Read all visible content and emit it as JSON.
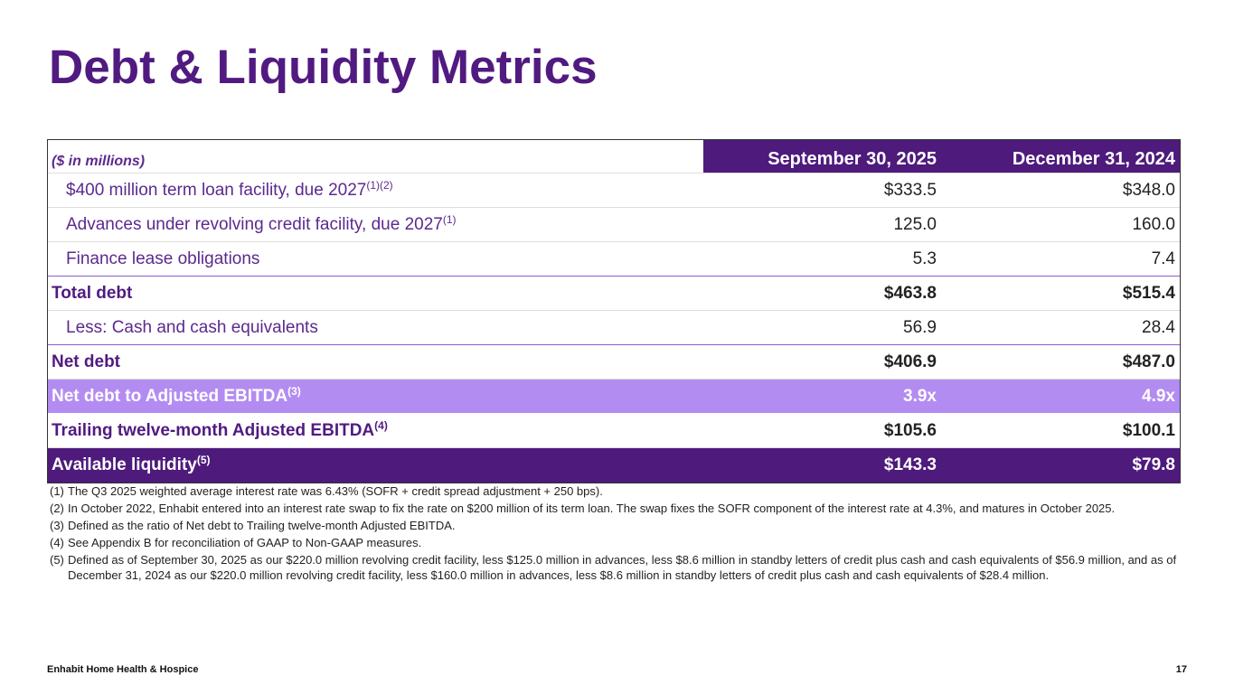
{
  "title": "Debt & Liquidity Metrics",
  "table": {
    "header": {
      "label": "($ in millions)",
      "columns": [
        "September 30, 2025",
        "December 31, 2024"
      ]
    },
    "rows": [
      {
        "label": "$400 million term loan facility, due 2027",
        "note": "(1)(2)",
        "values": [
          "$333.5",
          "$348.0"
        ]
      },
      {
        "label": "Advances under revolving credit facility, due 2027",
        "note": "(1)",
        "values": [
          "125.0",
          "160.0"
        ]
      },
      {
        "label": "Finance lease obligations",
        "values": [
          "5.3",
          "7.4"
        ]
      },
      {
        "label": "Total debt",
        "values": [
          "$463.8",
          "$515.4"
        ]
      },
      {
        "label": "Less: Cash and cash equivalents",
        "values": [
          "56.9",
          "28.4"
        ]
      },
      {
        "label": "Net debt",
        "values": [
          "$406.9",
          "$487.0"
        ]
      },
      {
        "label": "Net debt to Adjusted EBITDA",
        "note": "(3)",
        "values": [
          "3.9x",
          "4.9x"
        ]
      },
      {
        "label": "Trailing twelve-month Adjusted EBITDA",
        "note": "(4)",
        "values": [
          "$105.6",
          "$100.1"
        ]
      },
      {
        "label": "Available liquidity",
        "note": "(5)",
        "values": [
          "$143.3",
          "$79.8"
        ]
      }
    ]
  },
  "footnotes": [
    {
      "marker": "(1)",
      "text": "The Q3 2025 weighted average interest rate was 6.43% (SOFR + credit spread adjustment + 250 bps)."
    },
    {
      "marker": "(2)",
      "text": "In October 2022, Enhabit entered into an interest rate swap to fix the rate on $200 million of its term loan. The swap fixes the SOFR component of the interest rate at 4.3%, and matures in October 2025."
    },
    {
      "marker": "(3)",
      "text": "Defined as the ratio of Net debt to Trailing twelve-month Adjusted EBITDA."
    },
    {
      "marker": "(4)",
      "text": "See Appendix B for reconciliation of GAAP to Non-GAAP measures."
    },
    {
      "marker": "(5)",
      "text": "Defined as of September 30, 2025 as our $220.0 million revolving credit facility, less $125.0 million in advances, less $8.6 million in standby letters of credit plus cash and cash equivalents of $56.9 million, and as of December 31, 2024 as our $220.0 million revolving credit facility, less $160.0 million in advances, less $8.6 million in standby letters of credit plus cash and cash equivalents of $28.4 million."
    }
  ],
  "footer": {
    "left": "Enhabit Home Health & Hospice",
    "page": "17"
  }
}
